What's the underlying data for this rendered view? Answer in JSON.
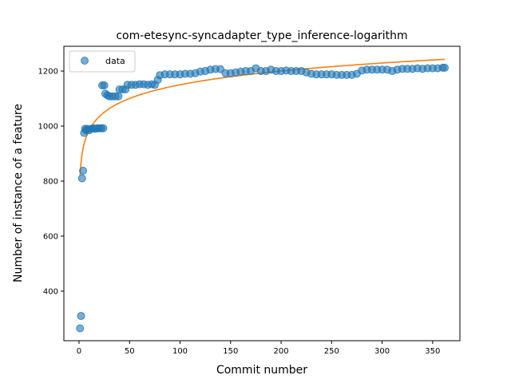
{
  "chart_data": {
    "type": "scatter",
    "title": "com-etesync-syncadapter_type_inference-logarithm",
    "xlabel": "Commit number",
    "ylabel": "Number of instance of a feature",
    "xlim": [
      -15,
      377
    ],
    "ylim": [
      220,
      1290
    ],
    "xticks": [
      0,
      50,
      100,
      150,
      200,
      250,
      300,
      350
    ],
    "yticks": [
      400,
      600,
      800,
      1000,
      1200
    ],
    "legend": {
      "position": "top-left",
      "entries": [
        "data"
      ]
    },
    "grid": false,
    "colors": {
      "data": "#1f77b4",
      "fit": "#ff7f0e"
    },
    "series": [
      {
        "name": "data",
        "kind": "scatter",
        "points": [
          [
            1,
            265
          ],
          [
            2,
            310
          ],
          [
            3,
            810
          ],
          [
            4,
            838
          ],
          [
            5,
            975
          ],
          [
            6,
            990
          ],
          [
            7,
            985
          ],
          [
            8,
            990
          ],
          [
            10,
            985
          ],
          [
            12,
            990
          ],
          [
            14,
            992
          ],
          [
            16,
            990
          ],
          [
            18,
            992
          ],
          [
            20,
            992
          ],
          [
            22,
            992
          ],
          [
            24,
            992
          ],
          [
            23,
            1148
          ],
          [
            25,
            1148
          ],
          [
            26,
            1118
          ],
          [
            28,
            1112
          ],
          [
            30,
            1108
          ],
          [
            33,
            1108
          ],
          [
            36,
            1108
          ],
          [
            39,
            1108
          ],
          [
            40,
            1133
          ],
          [
            43,
            1133
          ],
          [
            46,
            1133
          ],
          [
            48,
            1150
          ],
          [
            52,
            1150
          ],
          [
            56,
            1150
          ],
          [
            60,
            1152
          ],
          [
            64,
            1152
          ],
          [
            68,
            1150
          ],
          [
            72,
            1152
          ],
          [
            75,
            1150
          ],
          [
            78,
            1168
          ],
          [
            80,
            1185
          ],
          [
            85,
            1188
          ],
          [
            90,
            1188
          ],
          [
            95,
            1188
          ],
          [
            100,
            1188
          ],
          [
            105,
            1190
          ],
          [
            110,
            1190
          ],
          [
            115,
            1192
          ],
          [
            120,
            1198
          ],
          [
            125,
            1200
          ],
          [
            130,
            1205
          ],
          [
            135,
            1207
          ],
          [
            140,
            1207
          ],
          [
            145,
            1192
          ],
          [
            150,
            1192
          ],
          [
            155,
            1195
          ],
          [
            160,
            1198
          ],
          [
            165,
            1200
          ],
          [
            170,
            1200
          ],
          [
            175,
            1210
          ],
          [
            180,
            1200
          ],
          [
            185,
            1200
          ],
          [
            190,
            1205
          ],
          [
            195,
            1200
          ],
          [
            200,
            1200
          ],
          [
            205,
            1202
          ],
          [
            210,
            1200
          ],
          [
            215,
            1200
          ],
          [
            220,
            1200
          ],
          [
            225,
            1195
          ],
          [
            230,
            1190
          ],
          [
            235,
            1188
          ],
          [
            240,
            1188
          ],
          [
            245,
            1188
          ],
          [
            250,
            1188
          ],
          [
            255,
            1186
          ],
          [
            260,
            1186
          ],
          [
            265,
            1186
          ],
          [
            270,
            1186
          ],
          [
            275,
            1190
          ],
          [
            280,
            1202
          ],
          [
            285,
            1205
          ],
          [
            290,
            1205
          ],
          [
            295,
            1205
          ],
          [
            300,
            1205
          ],
          [
            305,
            1205
          ],
          [
            310,
            1200
          ],
          [
            315,
            1205
          ],
          [
            320,
            1208
          ],
          [
            325,
            1208
          ],
          [
            330,
            1208
          ],
          [
            335,
            1210
          ],
          [
            340,
            1208
          ],
          [
            345,
            1210
          ],
          [
            350,
            1210
          ],
          [
            355,
            1210
          ],
          [
            360,
            1212
          ],
          [
            362,
            1212
          ]
        ]
      },
      {
        "kind": "line",
        "model": "a + b * ln(x)",
        "a": 819,
        "b": 71.9,
        "x_range": [
          1,
          362
        ]
      }
    ]
  }
}
